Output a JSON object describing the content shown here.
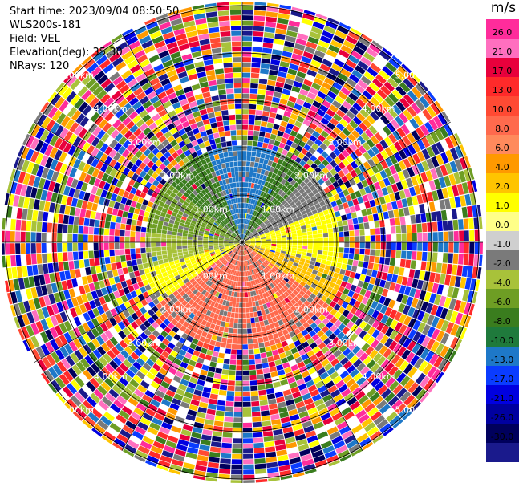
{
  "header": {
    "start_time": "Start time: 2023/09/04 08:50:50",
    "instrument": "WLS200s-181",
    "field": "Field: VEL",
    "elevation": "Elevation(deg): 35.30",
    "nrays": "NRays: 120"
  },
  "colorbar": {
    "title": "m/s",
    "ticks": [
      "26.0",
      "21.0",
      "17.0",
      "13.0",
      "10.0",
      "8.0",
      "6.0",
      "4.0",
      "2.0",
      "1.0",
      "0.0",
      "-1.0",
      "-2.0",
      "-4.0",
      "-6.0",
      "-8.0",
      "-10.0",
      "-13.0",
      "-17.0",
      "-21.0",
      "-26.0",
      "-30.0"
    ],
    "colors": [
      "#ff2c9b",
      "#ff6fbf",
      "#e8003c",
      "#ff2a2a",
      "#ff4a33",
      "#ff6a4d",
      "#ff8a5c",
      "#ff9900",
      "#ffc400",
      "#ffff00",
      "#ffff88",
      "#cfcfcf",
      "#7a7a7a",
      "#a8c23a",
      "#6e9e24",
      "#3a7d1e",
      "#1f7a3c",
      "#1e78c8",
      "#0a3cff",
      "#0000e0",
      "#0000a0",
      "#00005c",
      "#1a1a8c"
    ]
  },
  "range_labels": [
    "1.00km",
    "2.00km",
    "3.00km",
    "4.00km",
    "5.00km"
  ]
}
